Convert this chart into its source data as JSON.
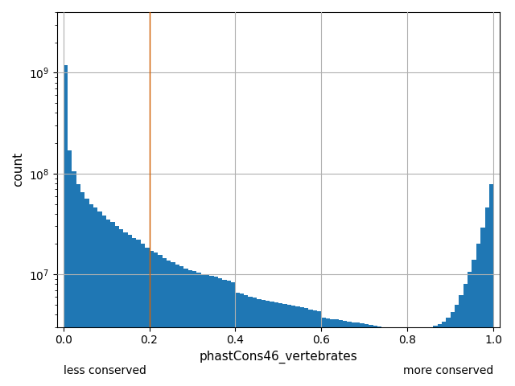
{
  "xlabel": "phastCons46_vertebrates",
  "ylabel": "count",
  "xlim": [
    -0.015,
    1.015
  ],
  "ymin": 3000000,
  "ymax": 4000000000,
  "bar_color": "#1f77b4",
  "vline_x": 0.2,
  "vline_color": "#d45f00",
  "less_conserved_label": "less conserved",
  "more_conserved_label": "more conserved",
  "counts": [
    1200000000,
    170000000,
    105000000,
    78000000,
    65000000,
    56000000,
    50000000,
    46000000,
    42000000,
    38000000,
    35000000,
    33000000,
    30000000,
    28000000,
    26000000,
    24500000,
    23000000,
    22000000,
    20000000,
    18500000,
    17000000,
    16500000,
    15500000,
    14500000,
    13800000,
    13200000,
    12600000,
    12000000,
    11500000,
    11000000,
    10700000,
    10400000,
    10100000,
    9800000,
    9600000,
    9400000,
    9100000,
    8800000,
    8600000,
    8400000,
    6600000,
    6400000,
    6200000,
    6000000,
    5900000,
    5700000,
    5600000,
    5500000,
    5400000,
    5300000,
    5200000,
    5100000,
    5000000,
    4900000,
    4800000,
    4700000,
    4600000,
    4500000,
    4400000,
    4300000,
    3700000,
    3650000,
    3600000,
    3550000,
    3500000,
    3450000,
    3400000,
    3350000,
    3300000,
    3250000,
    3200000,
    3150000,
    3100000,
    3050000,
    3000000,
    2950000,
    2900000,
    2850000,
    2800000,
    2750000,
    2700000,
    2700000,
    2750000,
    2800000,
    2900000,
    3000000,
    3100000,
    3200000,
    3400000,
    3700000,
    4200000,
    5000000,
    6200000,
    8000000,
    10500000,
    14000000,
    20000000,
    29000000,
    46000000,
    78000000,
    0
  ],
  "grid_color": "#b0b0b0",
  "grid_linewidth": 0.8,
  "figsize": [
    6.4,
    4.8
  ],
  "dpi": 100
}
